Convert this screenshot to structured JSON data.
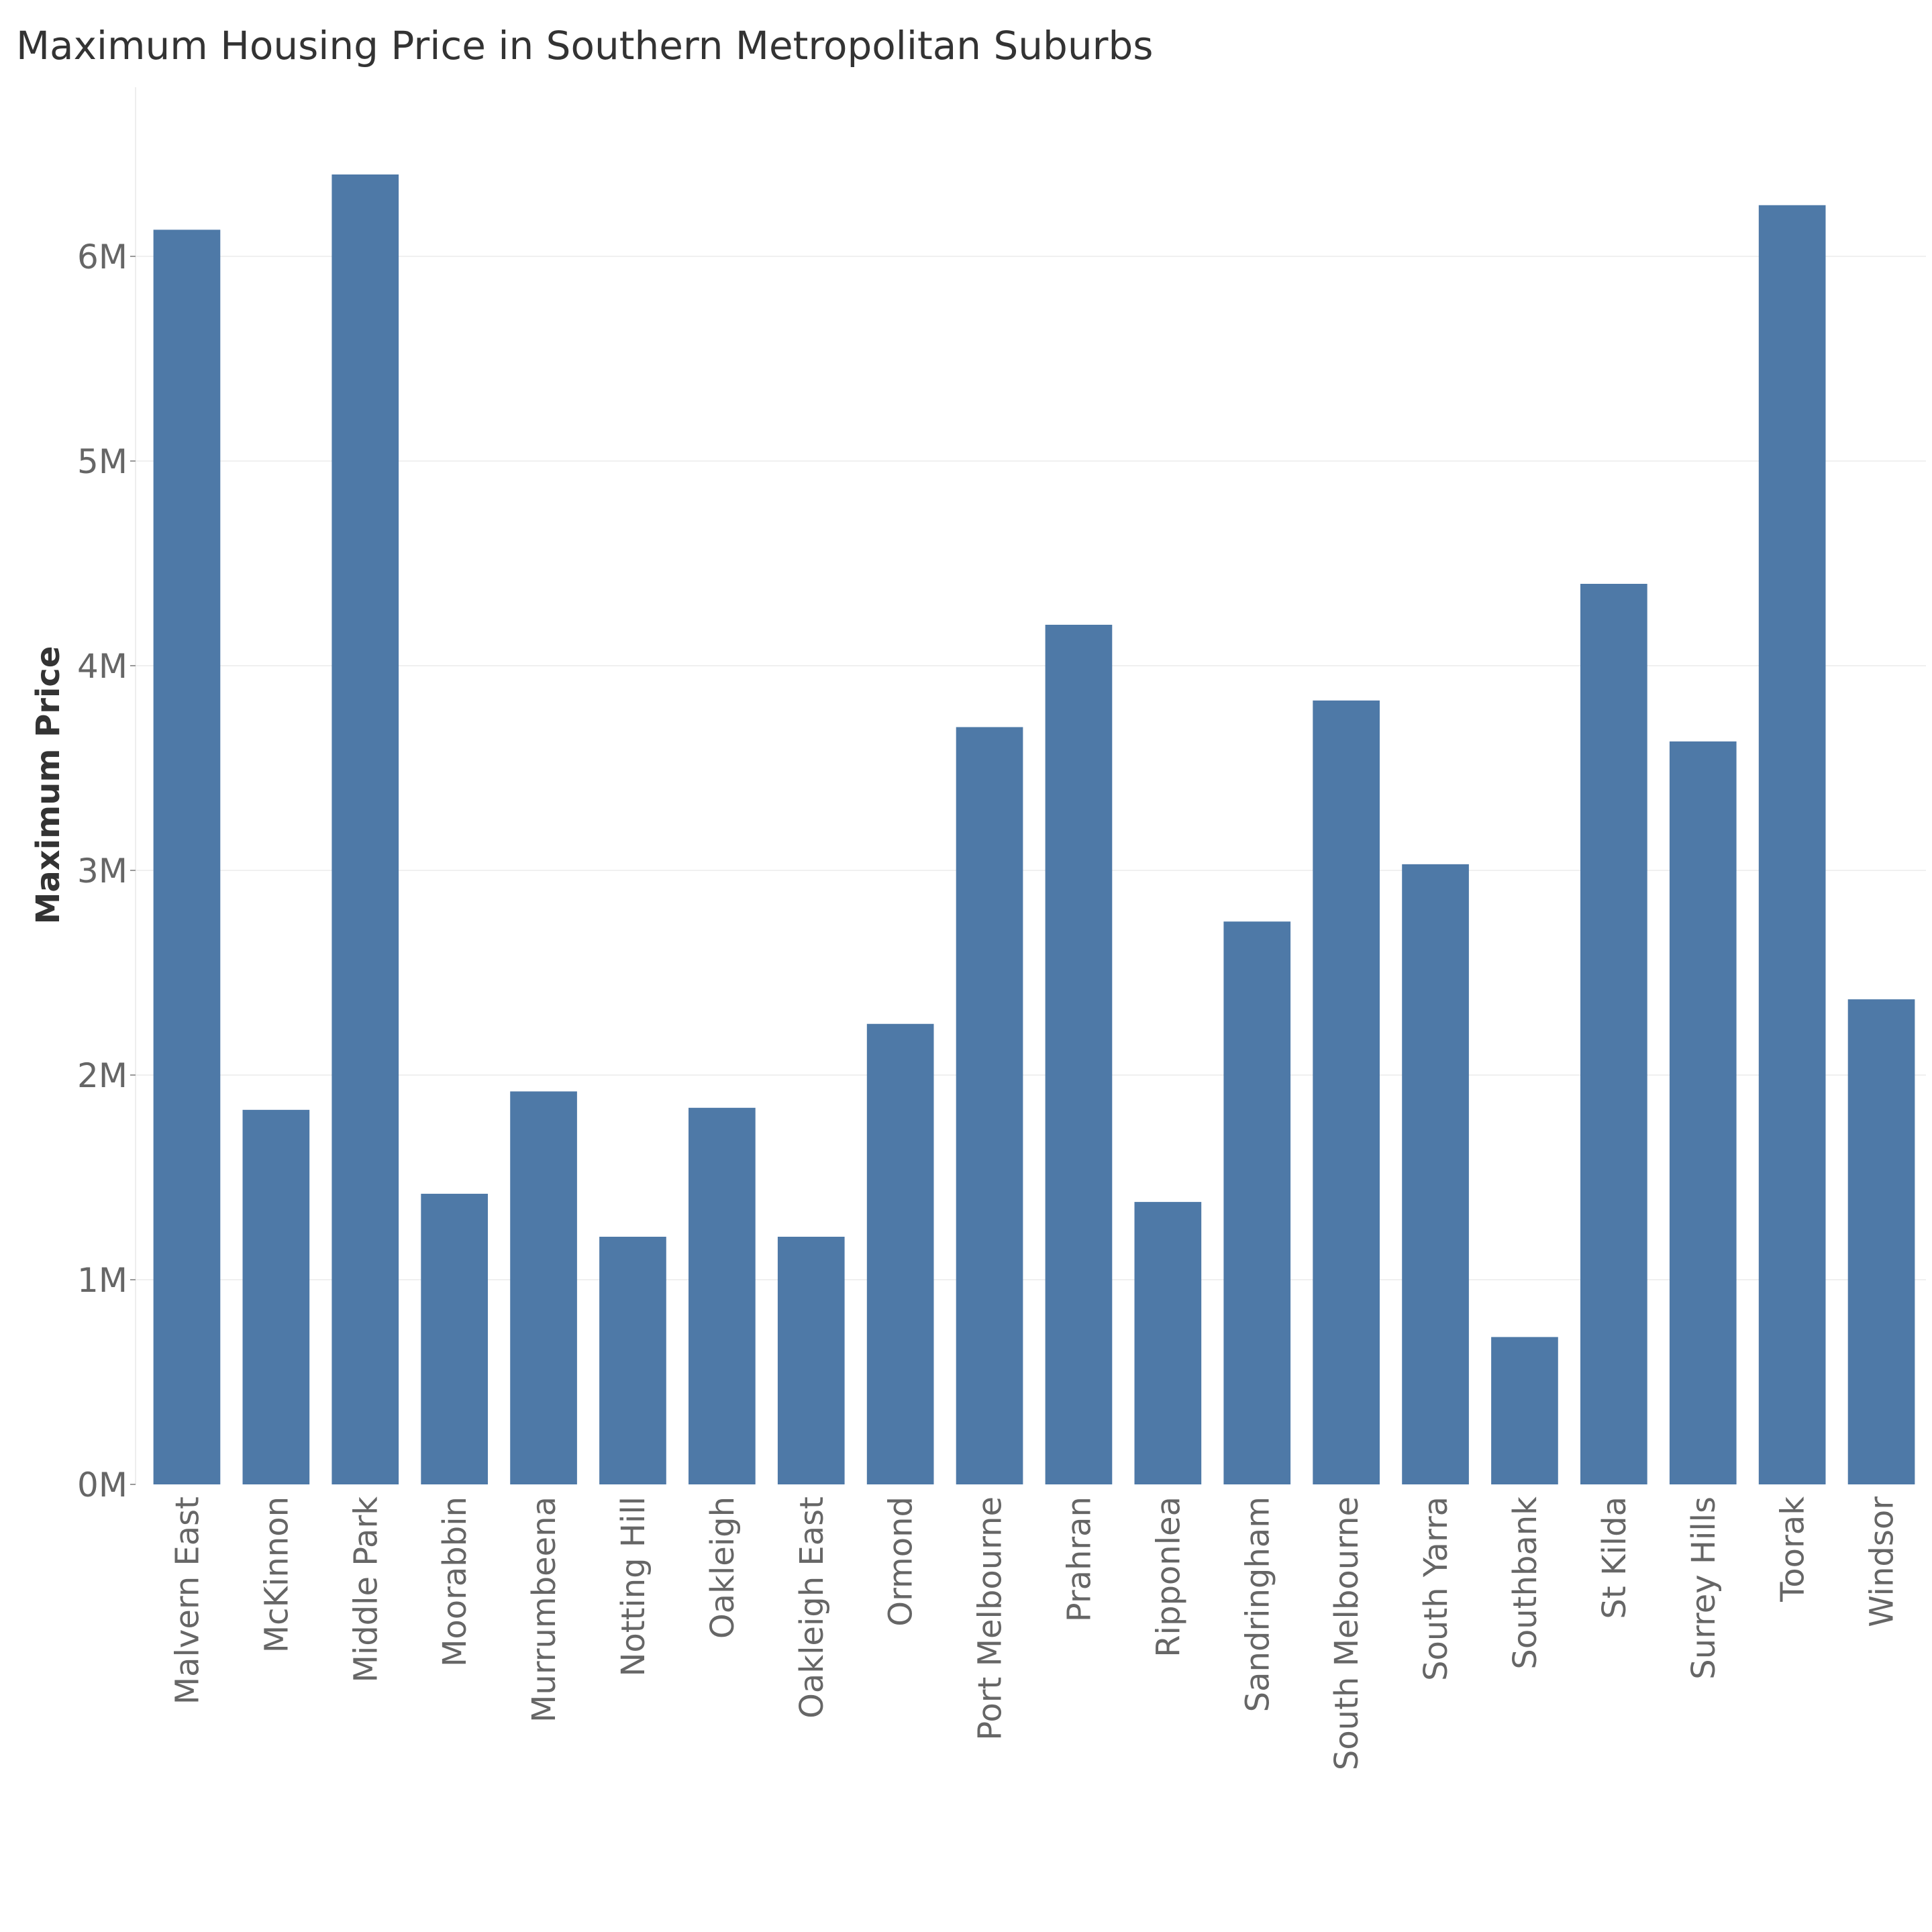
{
  "chart_data": {
    "type": "bar",
    "title": "Maximum Housing Price in Southern Metropolitan Suburbs",
    "xlabel": "",
    "ylabel": "Maximum Price",
    "ylim": [
      0,
      6800000
    ],
    "yticks": [
      0,
      1000000,
      2000000,
      3000000,
      4000000,
      5000000,
      6000000
    ],
    "ytick_labels": [
      "0M",
      "1M",
      "2M",
      "3M",
      "4M",
      "5M",
      "6M"
    ],
    "grid": "horizontal",
    "legend": "none",
    "bar_color": "#4e79a7",
    "categories": [
      "Malvern East",
      "McKinnon",
      "Middle Park",
      "Moorabbin",
      "Murrumbeena",
      "Notting Hill",
      "Oakleigh",
      "Oakleigh East",
      "Ormond",
      "Port Melbourne",
      "Prahran",
      "Ripponlea",
      "Sandringham",
      "South Melbourne",
      "South Yarra",
      "Southbank",
      "St Kilda",
      "Surrey Hills",
      "Toorak",
      "Windsor"
    ],
    "values": [
      6130000,
      1830000,
      6400000,
      1420000,
      1920000,
      1210000,
      1840000,
      1210000,
      2250000,
      3700000,
      4200000,
      1380000,
      2750000,
      3830000,
      3030000,
      720000,
      4400000,
      3630000,
      6250000,
      2370000
    ]
  }
}
